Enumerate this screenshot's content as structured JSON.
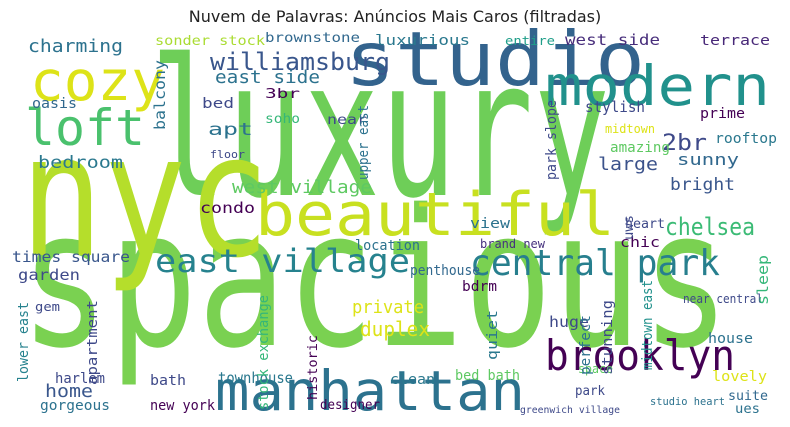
{
  "chart_data": {
    "type": "wordcloud",
    "title": "Nuvem de Palavras: Anúncios Mais Caros (filtradas)",
    "words": [
      {
        "text": "luxury",
        "color": "#6ece58"
      },
      {
        "text": "spacious",
        "color": "#7ad151"
      },
      {
        "text": "nyc",
        "color": "#b5de2b"
      },
      {
        "text": "studio",
        "color": "#33638d"
      },
      {
        "text": "modern",
        "color": "#21918c"
      },
      {
        "text": "cozy",
        "color": "#dde318"
      },
      {
        "text": "loft",
        "color": "#4ac16d"
      },
      {
        "text": "beautiful",
        "color": "#c8e020"
      },
      {
        "text": "east village",
        "color": "#26828e"
      },
      {
        "text": "central park",
        "color": "#277f8e"
      },
      {
        "text": "manhattan",
        "color": "#2c728e"
      },
      {
        "text": "brooklyn",
        "color": "#440154"
      },
      {
        "text": "chelsea",
        "color": "#3bbb75"
      },
      {
        "text": "williamsburg",
        "color": "#39568c"
      },
      {
        "text": "charming",
        "color": "#2c728e"
      },
      {
        "text": "bedroom",
        "color": "#2a788e"
      },
      {
        "text": "west village",
        "color": "#5ec962"
      },
      {
        "text": "condo",
        "color": "#440154"
      },
      {
        "text": "times square",
        "color": "#39568c"
      },
      {
        "text": "garden",
        "color": "#3e4989"
      },
      {
        "text": "sonder stock",
        "color": "#aadc32"
      },
      {
        "text": "brownstone",
        "color": "#31688e"
      },
      {
        "text": "luxurious",
        "color": "#2a788e"
      },
      {
        "text": "entire",
        "color": "#1f9e89"
      },
      {
        "text": "west side",
        "color": "#472d7b"
      },
      {
        "text": "terrace",
        "color": "#482878"
      },
      {
        "text": "east side",
        "color": "#2c728e"
      },
      {
        "text": "bed",
        "color": "#3e4989"
      },
      {
        "text": "apt",
        "color": "#2c728e"
      },
      {
        "text": "3br",
        "color": "#440154"
      },
      {
        "text": "soho",
        "color": "#35b779"
      },
      {
        "text": "near",
        "color": "#3e4989"
      },
      {
        "text": "2br",
        "color": "#3e4989"
      },
      {
        "text": "sunny",
        "color": "#31688e"
      },
      {
        "text": "rooftop",
        "color": "#2a788e"
      },
      {
        "text": "prime",
        "color": "#440154"
      },
      {
        "text": "stylish",
        "color": "#3e4989"
      },
      {
        "text": "midtown",
        "color": "#dde318"
      },
      {
        "text": "large",
        "color": "#3b528b"
      },
      {
        "text": "amazing",
        "color": "#5ec962"
      },
      {
        "text": "bright",
        "color": "#39568c"
      },
      {
        "text": "heart",
        "color": "#3e4989"
      },
      {
        "text": "chic",
        "color": "#440154"
      },
      {
        "text": "near central",
        "color": "#3e4989"
      },
      {
        "text": "house",
        "color": "#2c728e"
      },
      {
        "text": "lovely",
        "color": "#dde318"
      },
      {
        "text": "suite",
        "color": "#31688e"
      },
      {
        "text": "ues",
        "color": "#2c728e"
      },
      {
        "text": "view",
        "color": "#2c728e"
      },
      {
        "text": "brand new",
        "color": "#46327e"
      },
      {
        "text": "penthouse",
        "color": "#31688e"
      },
      {
        "text": "bdrm",
        "color": "#440154"
      },
      {
        "text": "private",
        "color": "#dde318"
      },
      {
        "text": "duplex",
        "color": "#dde318"
      },
      {
        "text": "huge",
        "color": "#3e4989"
      },
      {
        "text": "clean",
        "color": "#2a788e"
      },
      {
        "text": "bed bath",
        "color": "#5ec962"
      },
      {
        "text": "townhouse",
        "color": "#2a788e"
      },
      {
        "text": "home",
        "color": "#39568c"
      },
      {
        "text": "harlem",
        "color": "#3e4989"
      },
      {
        "text": "gorgeous",
        "color": "#2c728e"
      },
      {
        "text": "bath",
        "color": "#3e4989"
      },
      {
        "text": "new york",
        "color": "#440154"
      },
      {
        "text": "designer",
        "color": "#440154"
      },
      {
        "text": "park",
        "color": "#3e4989"
      },
      {
        "text": "space",
        "color": "#5ec962"
      },
      {
        "text": "location",
        "color": "#2c728e"
      },
      {
        "text": "gem",
        "color": "#3e4989"
      },
      {
        "text": "oasis",
        "color": "#31688e"
      },
      {
        "text": "floor",
        "color": "#3e4989"
      },
      {
        "text": "studio heart",
        "color": "#2c728e"
      },
      {
        "text": "greenwich village",
        "color": "#3e4989"
      },
      {
        "text": "balcony",
        "color": "#2c728e"
      },
      {
        "text": "stock exchange",
        "color": "#35b779"
      },
      {
        "text": "upper east",
        "color": "#2c728e"
      },
      {
        "text": "park slope",
        "color": "#3e4989"
      },
      {
        "text": "lower east",
        "color": "#26828e"
      },
      {
        "text": "apartment",
        "color": "#3e4989"
      },
      {
        "text": "sleep",
        "color": "#35b779"
      },
      {
        "text": "stunning",
        "color": "#3e4989"
      },
      {
        "text": "midtown east",
        "color": "#21918c"
      },
      {
        "text": "quiet",
        "color": "#2a788e"
      },
      {
        "text": "historic",
        "color": "#440154"
      },
      {
        "text": "perfect",
        "color": "#2c728e"
      },
      {
        "text": "uws",
        "color": "#3e4989"
      }
    ]
  }
}
